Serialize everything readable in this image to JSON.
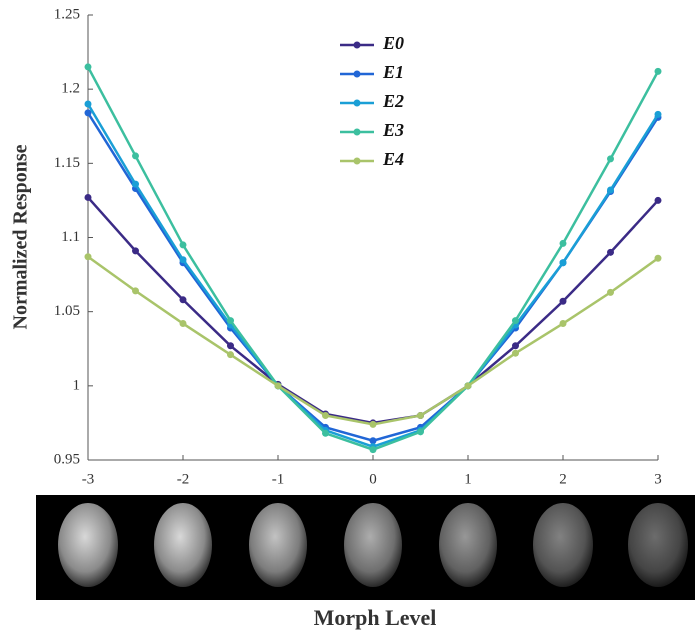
{
  "chart_data": {
    "type": "line",
    "xlabel": "Morph Level",
    "ylabel": "Normalized Response",
    "x": [
      -3,
      -2.5,
      -2,
      -1.5,
      -1,
      -0.5,
      0,
      0.5,
      1,
      1.5,
      2,
      2.5,
      3
    ],
    "xlim": [
      -3,
      3
    ],
    "xticks": [
      -3,
      -2,
      -1,
      0,
      1,
      2,
      3
    ],
    "ylim": [
      0.95,
      1.25
    ],
    "yticks": [
      0.95,
      1,
      1.05,
      1.1,
      1.15,
      1.2,
      1.25
    ],
    "grid": false,
    "legend": "top-center",
    "series": [
      {
        "name": "E0",
        "color": "#3b2b86",
        "values": [
          1.127,
          1.091,
          1.058,
          1.027,
          1.001,
          0.981,
          0.975,
          0.98,
          1.0,
          1.027,
          1.057,
          1.09,
          1.125
        ]
      },
      {
        "name": "E1",
        "color": "#2166d6",
        "values": [
          1.184,
          1.133,
          1.083,
          1.039,
          1.0,
          0.972,
          0.963,
          0.972,
          1.0,
          1.039,
          1.083,
          1.131,
          1.181
        ]
      },
      {
        "name": "E2",
        "color": "#1a9fd6",
        "values": [
          1.19,
          1.136,
          1.085,
          1.041,
          1.0,
          0.97,
          0.959,
          0.97,
          1.0,
          1.041,
          1.083,
          1.132,
          1.183
        ]
      },
      {
        "name": "E3",
        "color": "#3cbf9f",
        "values": [
          1.215,
          1.155,
          1.095,
          1.044,
          1.0,
          0.968,
          0.957,
          0.969,
          1.0,
          1.044,
          1.096,
          1.153,
          1.212
        ]
      },
      {
        "name": "E4",
        "color": "#a9c46a",
        "values": [
          1.087,
          1.064,
          1.042,
          1.021,
          1.0,
          0.98,
          0.974,
          0.98,
          1.0,
          1.022,
          1.042,
          1.063,
          1.086
        ]
      }
    ]
  }
}
